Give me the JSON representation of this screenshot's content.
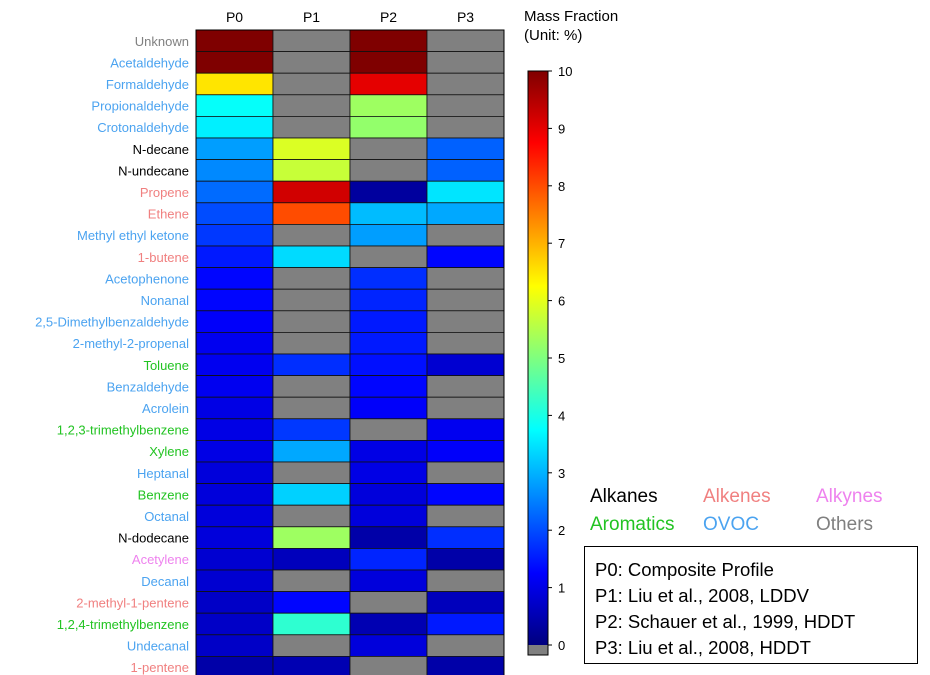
{
  "chart_data": {
    "type": "heatmap",
    "columns": [
      "P0",
      "P1",
      "P2",
      "P3"
    ],
    "rows": [
      {
        "label": "Unknown",
        "group": "Others",
        "values": [
          10,
          null,
          10,
          null
        ]
      },
      {
        "label": "Acetaldehyde",
        "group": "OVOC",
        "values": [
          10,
          null,
          10,
          null
        ]
      },
      {
        "label": "Formaldehyde",
        "group": "OVOC",
        "values": [
          6.5,
          null,
          9,
          null
        ]
      },
      {
        "label": "Propionaldehyde",
        "group": "OVOC",
        "values": [
          3.8,
          null,
          5.3,
          null
        ]
      },
      {
        "label": "Crotonaldehyde",
        "group": "OVOC",
        "values": [
          3.6,
          null,
          5.2,
          null
        ]
      },
      {
        "label": "N-decane",
        "group": "Alkanes",
        "values": [
          2.8,
          5.9,
          null,
          2.2
        ]
      },
      {
        "label": "N-undecane",
        "group": "Alkanes",
        "values": [
          2.6,
          5.7,
          null,
          2.2
        ]
      },
      {
        "label": "Propene",
        "group": "Alkenes",
        "values": [
          2.3,
          9.2,
          0.3,
          3.5
        ]
      },
      {
        "label": "Ethene",
        "group": "Alkenes",
        "values": [
          2.0,
          8.0,
          3.1,
          2.9
        ]
      },
      {
        "label": "Methyl ethyl ketone",
        "group": "OVOC",
        "values": [
          1.8,
          null,
          2.8,
          null
        ]
      },
      {
        "label": "1-butene",
        "group": "Alkenes",
        "values": [
          1.5,
          3.4,
          null,
          1.3
        ]
      },
      {
        "label": "Acetophenone",
        "group": "OVOC",
        "values": [
          1.3,
          null,
          1.7,
          null
        ]
      },
      {
        "label": "Nonanal",
        "group": "OVOC",
        "values": [
          1.3,
          null,
          1.6,
          null
        ]
      },
      {
        "label": "2,5-Dimethylbenzaldehyde",
        "group": "OVOC",
        "values": [
          1.2,
          null,
          1.5,
          null
        ]
      },
      {
        "label": "2-methyl-2-propenal",
        "group": "OVOC",
        "values": [
          1.1,
          null,
          1.5,
          null
        ]
      },
      {
        "label": "Toluene",
        "group": "Aromatics",
        "values": [
          1.1,
          1.7,
          1.4,
          0.8
        ]
      },
      {
        "label": "Benzaldehyde",
        "group": "OVOC",
        "values": [
          1.1,
          null,
          1.3,
          null
        ]
      },
      {
        "label": "Acrolein",
        "group": "OVOC",
        "values": [
          1.0,
          null,
          1.2,
          null
        ]
      },
      {
        "label": "1,2,3-trimethylbenzene",
        "group": "Aromatics",
        "values": [
          1.0,
          1.8,
          null,
          1.1
        ]
      },
      {
        "label": "Xylene",
        "group": "Aromatics",
        "values": [
          1.0,
          2.9,
          1.0,
          1.2
        ]
      },
      {
        "label": "Heptanal",
        "group": "OVOC",
        "values": [
          0.9,
          null,
          1.0,
          null
        ]
      },
      {
        "label": "Benzene",
        "group": "Aromatics",
        "values": [
          0.9,
          3.3,
          0.9,
          1.3
        ]
      },
      {
        "label": "Octanal",
        "group": "OVOC",
        "values": [
          0.9,
          null,
          0.9,
          null
        ]
      },
      {
        "label": "N-dodecane",
        "group": "Alkanes",
        "values": [
          0.9,
          5.3,
          0.4,
          1.7
        ]
      },
      {
        "label": "Acetylene",
        "group": "Alkynes",
        "values": [
          0.8,
          0.6,
          1.6,
          0.4
        ]
      },
      {
        "label": "Decanal",
        "group": "OVOC",
        "values": [
          0.8,
          null,
          0.9,
          null
        ]
      },
      {
        "label": "2-methyl-1-pentene",
        "group": "Alkenes",
        "values": [
          0.7,
          1.3,
          null,
          0.6
        ]
      },
      {
        "label": "1,2,4-trimethylbenzene",
        "group": "Aromatics",
        "values": [
          0.7,
          4.2,
          0.5,
          1.5
        ]
      },
      {
        "label": "Undecanal",
        "group": "OVOC",
        "values": [
          0.7,
          null,
          0.9,
          null
        ]
      },
      {
        "label": "1-pentene",
        "group": "Alkenes",
        "values": [
          0.4,
          0.5,
          null,
          0.4
        ]
      }
    ],
    "colorbar": {
      "title_line1": "Mass Fraction",
      "title_line2": "(Unit: %)",
      "range": [
        0,
        10
      ],
      "ticks": [
        "10",
        "9",
        "8",
        "7",
        "6",
        "5",
        "4",
        "3",
        "2",
        "1",
        "0"
      ],
      "missing_color": "#808080",
      "colorscale": [
        "#00007f",
        "#0000ff",
        "#007fff",
        "#00ffff",
        "#7fff7f",
        "#ffff00",
        "#ff7f00",
        "#ff0000",
        "#7f0000"
      ]
    }
  },
  "group_legend": [
    {
      "label": "Alkanes",
      "color": "#000000"
    },
    {
      "label": "Alkenes",
      "color": "#f08080"
    },
    {
      "label": "Alkynes",
      "color": "#ee82ee"
    },
    {
      "label": "Aromatics",
      "color": "#22c322"
    },
    {
      "label": "OVOC",
      "color": "#4ba3f0"
    },
    {
      "label": "Others",
      "color": "#808080"
    }
  ],
  "profile_legend": [
    "P0: Composite Profile",
    "P1: Liu et al., 2008, LDDV",
    "P2: Schauer et al., 1999, HDDT",
    "P3: Liu et al., 2008, HDDT"
  ]
}
